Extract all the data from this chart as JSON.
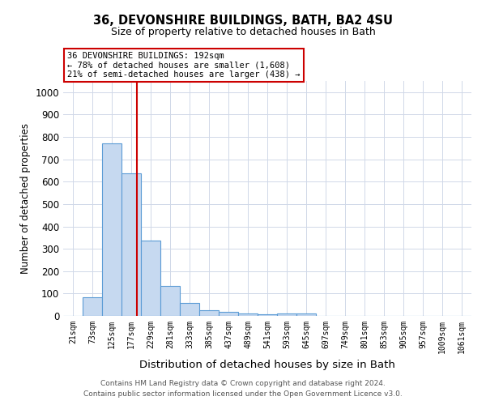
{
  "title1": "36, DEVONSHIRE BUILDINGS, BATH, BA2 4SU",
  "title2": "Size of property relative to detached houses in Bath",
  "xlabel": "Distribution of detached houses by size in Bath",
  "ylabel": "Number of detached properties",
  "bar_categories": [
    "21sqm",
    "73sqm",
    "125sqm",
    "177sqm",
    "229sqm",
    "281sqm",
    "333sqm",
    "385sqm",
    "437sqm",
    "489sqm",
    "541sqm",
    "593sqm",
    "645sqm",
    "697sqm",
    "749sqm",
    "801sqm",
    "853sqm",
    "905sqm",
    "957sqm",
    "1009sqm",
    "1061sqm"
  ],
  "bar_values": [
    0,
    83,
    770,
    638,
    335,
    133,
    57,
    25,
    18,
    11,
    8,
    10,
    10,
    0,
    0,
    0,
    0,
    0,
    0,
    0,
    0
  ],
  "bar_color": "#c6d9f0",
  "bar_edge_color": "#5b9bd5",
  "ylim": [
    0,
    1050
  ],
  "yticks": [
    0,
    100,
    200,
    300,
    400,
    500,
    600,
    700,
    800,
    900,
    1000
  ],
  "annotation_text": "36 DEVONSHIRE BUILDINGS: 192sqm\n← 78% of detached houses are smaller (1,608)\n21% of semi-detached houses are larger (438) →",
  "annotation_box_color": "#ffffff",
  "annotation_box_edge": "#cc0000",
  "footer1": "Contains HM Land Registry data © Crown copyright and database right 2024.",
  "footer2": "Contains public sector information licensed under the Open Government Licence v3.0.",
  "background_color": "#ffffff",
  "grid_color": "#d0d8e8"
}
